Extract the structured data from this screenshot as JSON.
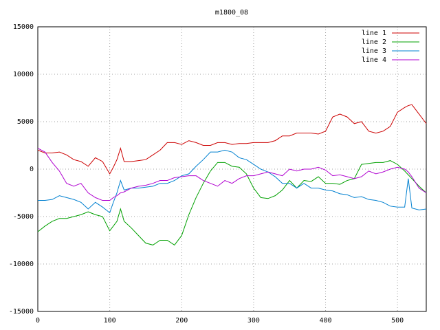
{
  "chart_data": {
    "type": "line",
    "title": "m1800_08",
    "x": [
      0,
      10,
      20,
      30,
      40,
      50,
      60,
      70,
      80,
      90,
      100,
      105,
      110,
      115,
      120,
      130,
      140,
      150,
      160,
      170,
      180,
      190,
      200,
      210,
      220,
      230,
      240,
      250,
      260,
      270,
      280,
      290,
      300,
      310,
      320,
      330,
      340,
      350,
      360,
      370,
      380,
      390,
      400,
      410,
      420,
      430,
      440,
      450,
      460,
      470,
      480,
      490,
      500,
      510,
      515,
      520,
      530,
      540
    ],
    "series": [
      {
        "name": "line 1",
        "color": "#cc0000",
        "values": [
          2000,
          1700,
          1700,
          1800,
          1500,
          1000,
          800,
          300,
          1200,
          800,
          -500,
          200,
          1000,
          2200,
          800,
          800,
          900,
          1000,
          1500,
          2000,
          2800,
          2800,
          2600,
          3000,
          2800,
          2500,
          2500,
          2800,
          2800,
          2600,
          2700,
          2700,
          2800,
          2800,
          2800,
          3000,
          3500,
          3500,
          3800,
          3800,
          3800,
          3700,
          4000,
          5500,
          5800,
          5500,
          4800,
          5000,
          4000,
          3800,
          4000,
          4500,
          6000,
          6500,
          6700,
          6800,
          5800,
          4800
        ]
      },
      {
        "name": "line 2",
        "color": "#00a000",
        "values": [
          -6600,
          -6000,
          -5500,
          -5200,
          -5200,
          -5000,
          -4800,
          -4500,
          -4800,
          -5000,
          -6500,
          -6000,
          -5500,
          -4200,
          -5500,
          -6200,
          -7000,
          -7800,
          -8000,
          -7500,
          -7500,
          -8000,
          -7000,
          -4800,
          -3000,
          -1500,
          -200,
          700,
          700,
          300,
          200,
          -500,
          -2000,
          -3000,
          -3100,
          -2800,
          -2200,
          -1200,
          -2000,
          -1200,
          -1300,
          -800,
          -1500,
          -1500,
          -1600,
          -1200,
          -1000,
          500,
          600,
          700,
          700,
          900,
          500,
          -200,
          -600,
          -1000,
          -1800,
          -2500
        ]
      },
      {
        "name": "line 3",
        "color": "#0080d0",
        "values": [
          -3300,
          -3300,
          -3200,
          -2800,
          -3000,
          -3200,
          -3500,
          -4200,
          -3500,
          -4000,
          -4600,
          -3500,
          -2500,
          -1200,
          -2200,
          -2000,
          -2000,
          -1900,
          -1800,
          -1500,
          -1500,
          -1200,
          -700,
          -500,
          300,
          1000,
          1800,
          1800,
          2000,
          1800,
          1200,
          1000,
          500,
          0,
          -300,
          -800,
          -1500,
          -1500,
          -2000,
          -1500,
          -2000,
          -2000,
          -2200,
          -2300,
          -2600,
          -2700,
          -3000,
          -2900,
          -3200,
          -3300,
          -3500,
          -3900,
          -4000,
          -4000,
          -1000,
          -4100,
          -4300,
          -4200
        ]
      },
      {
        "name": "line 4",
        "color": "#b000d0",
        "values": [
          2200,
          1800,
          700,
          -200,
          -1500,
          -1800,
          -1500,
          -2500,
          -3000,
          -3300,
          -3300,
          -3000,
          -2800,
          -2500,
          -2400,
          -2000,
          -1800,
          -1700,
          -1500,
          -1200,
          -1200,
          -900,
          -800,
          -700,
          -700,
          -1200,
          -1500,
          -1800,
          -1200,
          -1500,
          -1000,
          -700,
          -700,
          -500,
          -300,
          -500,
          -700,
          0,
          -200,
          0,
          0,
          200,
          -100,
          -700,
          -600,
          -800,
          -1000,
          -800,
          -200,
          -500,
          -300,
          0,
          200,
          0,
          -300,
          -800,
          -2000,
          -2500
        ]
      }
    ],
    "xlim": [
      0,
      540
    ],
    "xticks": [
      0,
      100,
      200,
      300,
      400,
      500
    ],
    "ylim": [
      -15000,
      15000
    ],
    "yticks": [
      -15000,
      -10000,
      -5000,
      0,
      5000,
      10000,
      15000
    ],
    "grid": true,
    "legend": "top-right"
  }
}
